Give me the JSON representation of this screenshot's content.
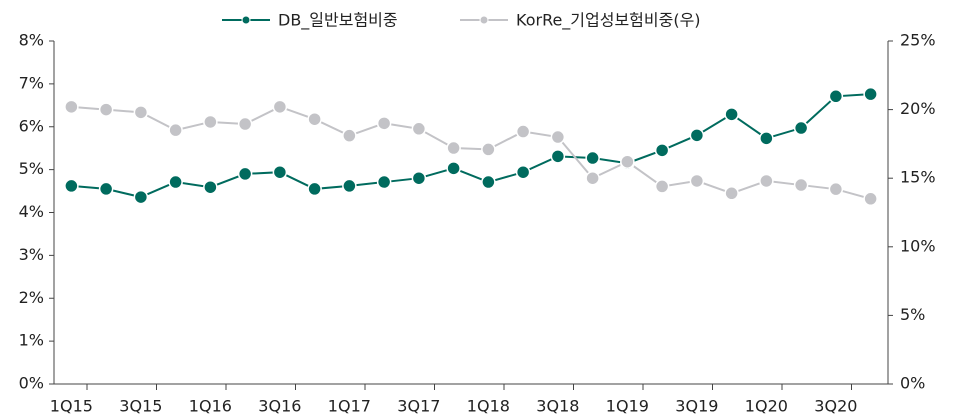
{
  "chart_data": {
    "type": "line",
    "categories": [
      "1Q15",
      null,
      "3Q15",
      null,
      "1Q16",
      null,
      "3Q16",
      null,
      "1Q17",
      null,
      "3Q17",
      null,
      "1Q18",
      null,
      "3Q18",
      null,
      "1Q19",
      null,
      "3Q19",
      null,
      "1Q20",
      null,
      "3Q20",
      null
    ],
    "series": [
      {
        "name": "DB_일반보험비중",
        "color": "#006b5e",
        "values": [
          4.62,
          4.55,
          4.36,
          4.71,
          4.59,
          4.9,
          4.94,
          4.55,
          4.62,
          4.71,
          4.8,
          5.03,
          4.71,
          4.94,
          5.31,
          5.27,
          5.15,
          5.45,
          5.8,
          6.29,
          5.73,
          5.97,
          6.71,
          6.76
        ]
      },
      {
        "name": "KorRe_기업성보험비중(우)",
        "color": "#c3c3c7",
        "axis": "y2",
        "values": [
          20.2,
          20.0,
          19.8,
          18.5,
          19.1,
          18.95,
          20.2,
          19.3,
          18.1,
          19.0,
          18.6,
          17.2,
          17.1,
          18.4,
          18.0,
          15.0,
          16.2,
          14.4,
          14.8,
          13.9,
          14.8,
          14.5,
          14.2,
          13.5
        ]
      }
    ],
    "ylim": [
      0,
      8
    ],
    "yticks": [
      {
        "value": 0,
        "label": "0%"
      },
      {
        "value": 1,
        "label": "1%"
      },
      {
        "value": 2,
        "label": "2%"
      },
      {
        "value": 3,
        "label": "3%"
      },
      {
        "value": 4,
        "label": "4%"
      },
      {
        "value": 5,
        "label": "5%"
      },
      {
        "value": 6,
        "label": "6%"
      },
      {
        "value": 7,
        "label": "7%"
      },
      {
        "value": 8,
        "label": "8%"
      }
    ],
    "y2lim": [
      0,
      25
    ],
    "y2ticks": [
      {
        "value": 0,
        "label": "0%"
      },
      {
        "value": 5,
        "label": "5%"
      },
      {
        "value": 10,
        "label": "10%"
      },
      {
        "value": 15,
        "label": "15%"
      },
      {
        "value": 20,
        "label": "20%"
      },
      {
        "value": 25,
        "label": "25%"
      }
    ],
    "legend": "top"
  }
}
